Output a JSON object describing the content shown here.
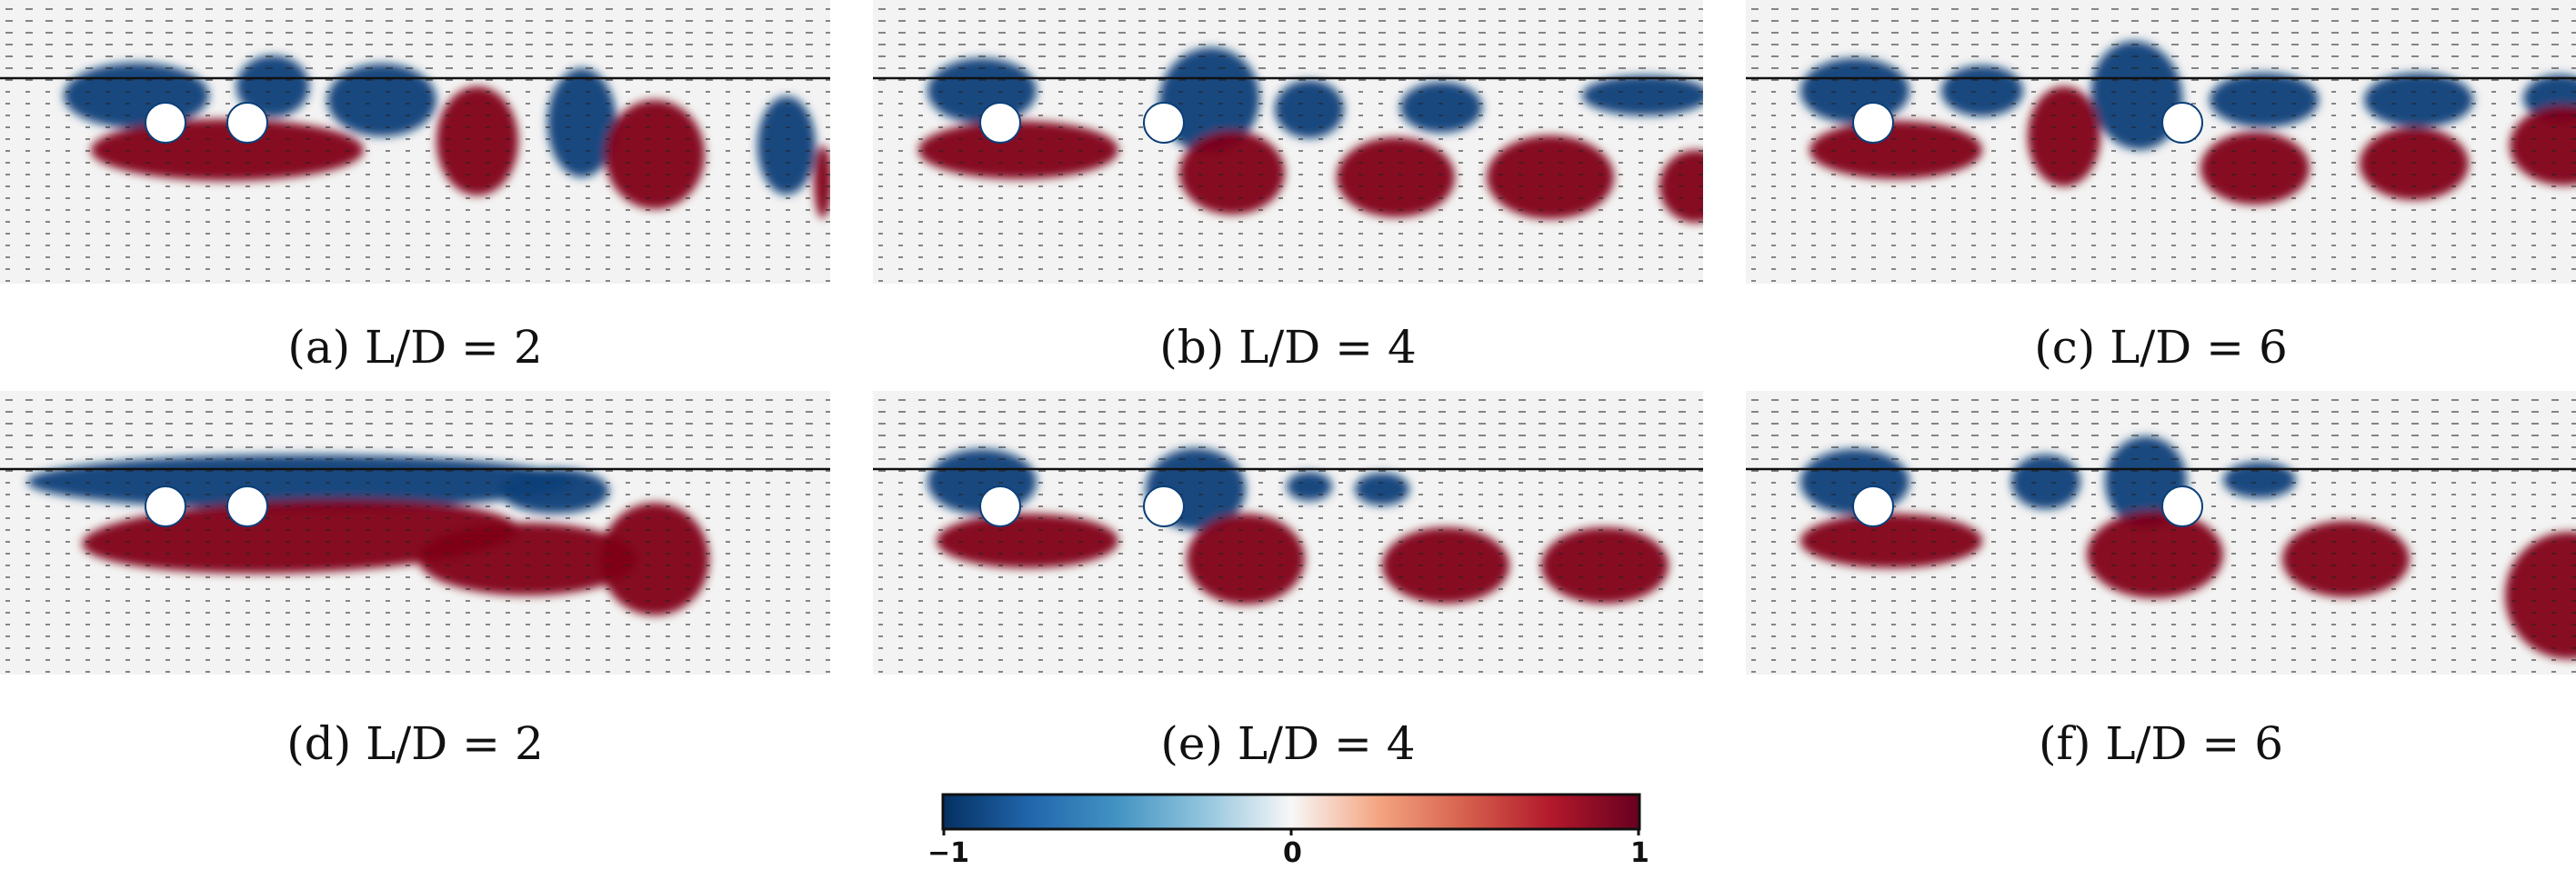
{
  "figure": {
    "panels": [
      {
        "id": "a",
        "caption": "(a) L/D = 2",
        "spacing": 2,
        "row": "top"
      },
      {
        "id": "b",
        "caption": "(b) L/D = 4",
        "spacing": 4,
        "row": "top"
      },
      {
        "id": "c",
        "caption": "(c) L/D = 6",
        "spacing": 6,
        "row": "top"
      },
      {
        "id": "d",
        "caption": "(d) L/D = 2",
        "spacing": 2,
        "row": "bottom"
      },
      {
        "id": "e",
        "caption": "(e) L/D = 4",
        "spacing": 4,
        "row": "bottom"
      },
      {
        "id": "f",
        "caption": "(f) L/D = 6",
        "spacing": 6,
        "row": "bottom"
      }
    ],
    "colorbar": {
      "min_label": "−1",
      "mid_label": "0",
      "max_label": "1",
      "colors": [
        "#053061",
        "#2166ac",
        "#4393c3",
        "#92c5de",
        "#f7f7f7",
        "#f4a582",
        "#d6604d",
        "#b2182b",
        "#67001f"
      ]
    },
    "colors": {
      "positive": "#7f0019",
      "negative": "#0b3f78",
      "background": "#f3f3f3",
      "cylinder": "#ffffff"
    }
  }
}
